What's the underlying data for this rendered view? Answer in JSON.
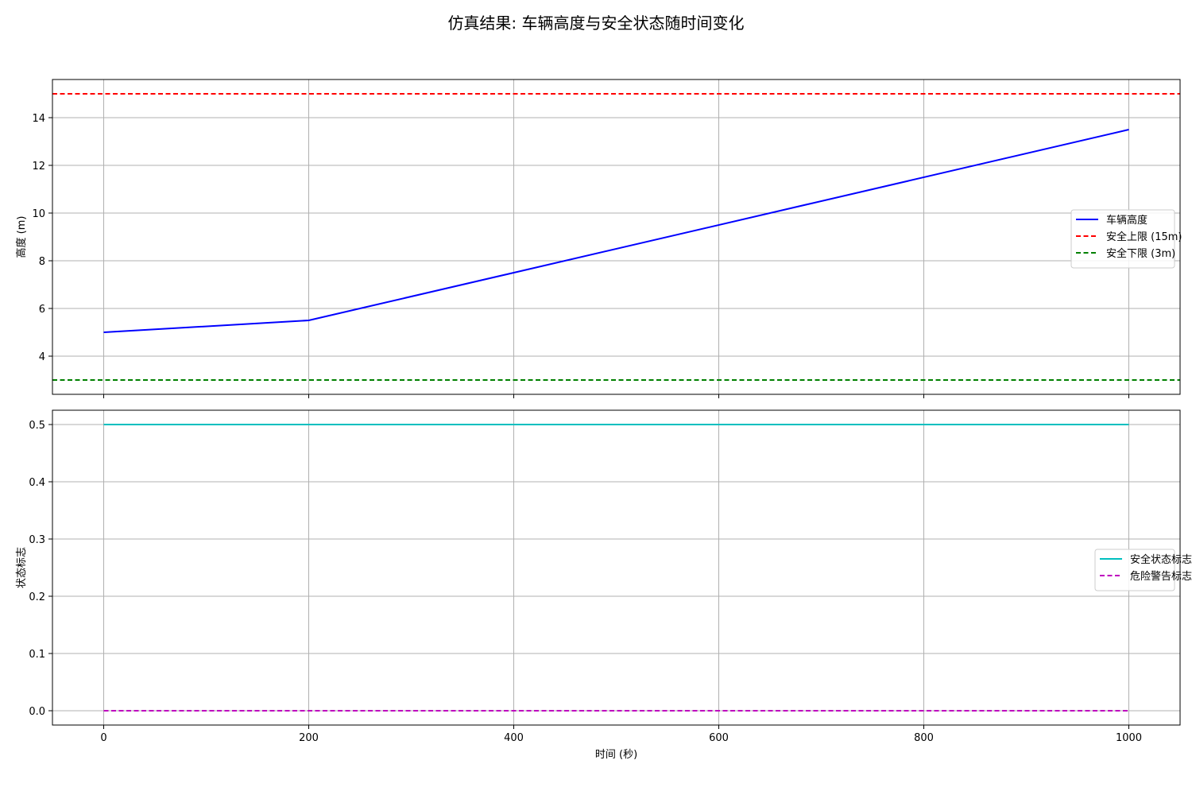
{
  "title": "仿真结果: 车辆高度与安全状态随时间变化",
  "chart_data": [
    {
      "type": "line",
      "ylabel": "高度 (m)",
      "xlim": [
        -50,
        1050
      ],
      "ylim": [
        2.4,
        15.6
      ],
      "xticks": [
        0,
        200,
        400,
        600,
        800,
        1000
      ],
      "yticks": [
        4,
        6,
        8,
        10,
        12,
        14
      ],
      "grid": true,
      "legend_position": "center-right",
      "series": [
        {
          "name": "车辆高度",
          "color": "#0000ff",
          "style": "solid",
          "x": [
            0,
            200,
            1000
          ],
          "y": [
            5.0,
            5.5,
            13.5
          ]
        },
        {
          "name": "安全上限 (15m)",
          "color": "#ff0000",
          "style": "dashed",
          "hline": 15
        },
        {
          "name": "安全下限 (3m)",
          "color": "#008000",
          "style": "dashed",
          "hline": 3
        }
      ]
    },
    {
      "type": "line",
      "xlabel": "时间 (秒)",
      "ylabel": "状态标志",
      "xlim": [
        -50,
        1050
      ],
      "ylim": [
        -0.025,
        0.525
      ],
      "xticks": [
        0,
        200,
        400,
        600,
        800,
        1000
      ],
      "yticks": [
        0.0,
        0.1,
        0.2,
        0.3,
        0.4,
        0.5
      ],
      "grid": true,
      "legend_position": "center-right",
      "series": [
        {
          "name": "安全状态标志",
          "color": "#00bfbf",
          "style": "solid",
          "x": [
            0,
            1000
          ],
          "y": [
            0.5,
            0.5
          ]
        },
        {
          "name": "危险警告标志",
          "color": "#bf00bf",
          "style": "dashed",
          "x": [
            0,
            1000
          ],
          "y": [
            0.0,
            0.0
          ]
        }
      ]
    }
  ]
}
